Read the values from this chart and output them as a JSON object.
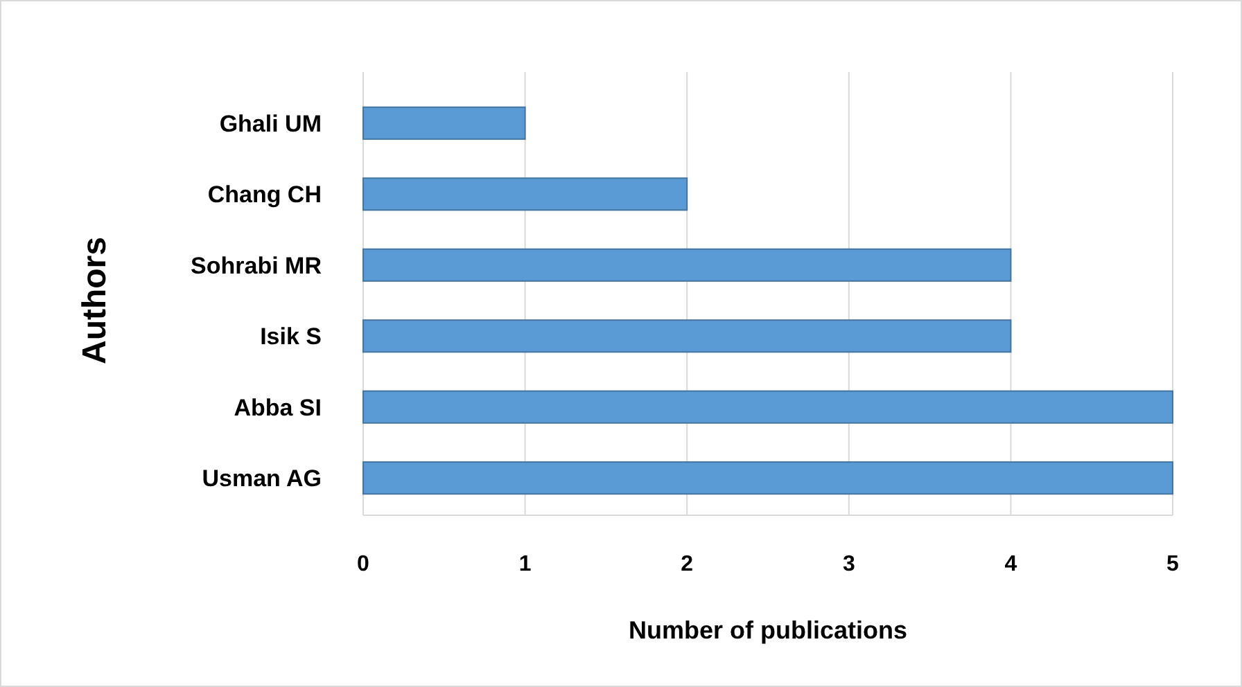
{
  "chart_data": {
    "type": "bar",
    "orientation": "horizontal",
    "xlabel": "Number of publications",
    "ylabel": "Authors",
    "categories": [
      "Ghali UM",
      "Chang CH",
      "Sohrabi MR",
      "Isik S",
      "Abba SI",
      "Usman AG"
    ],
    "values": [
      1,
      2,
      4,
      4,
      5,
      5
    ],
    "color": "#5b9bd5",
    "xlim": [
      0,
      5
    ],
    "xticks": [
      0,
      1,
      2,
      3,
      4,
      5
    ],
    "grid": "x"
  }
}
